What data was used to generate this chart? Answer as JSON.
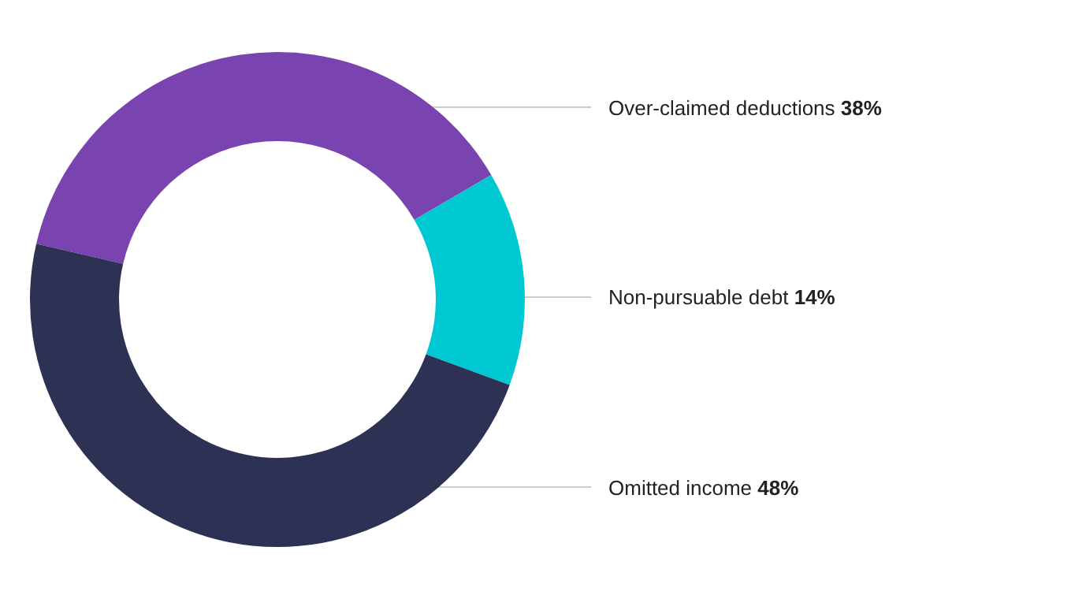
{
  "chart_data": {
    "type": "donut",
    "categories": [
      "Over-claimed deductions",
      "Non-pursuable debt",
      "Omitted income"
    ],
    "values": [
      38,
      14,
      48
    ],
    "value_labels": [
      "38%",
      "14%",
      "48%"
    ],
    "colors": [
      "#7a44b0",
      "#00c8d2",
      "#2d3154"
    ],
    "legend": false
  }
}
